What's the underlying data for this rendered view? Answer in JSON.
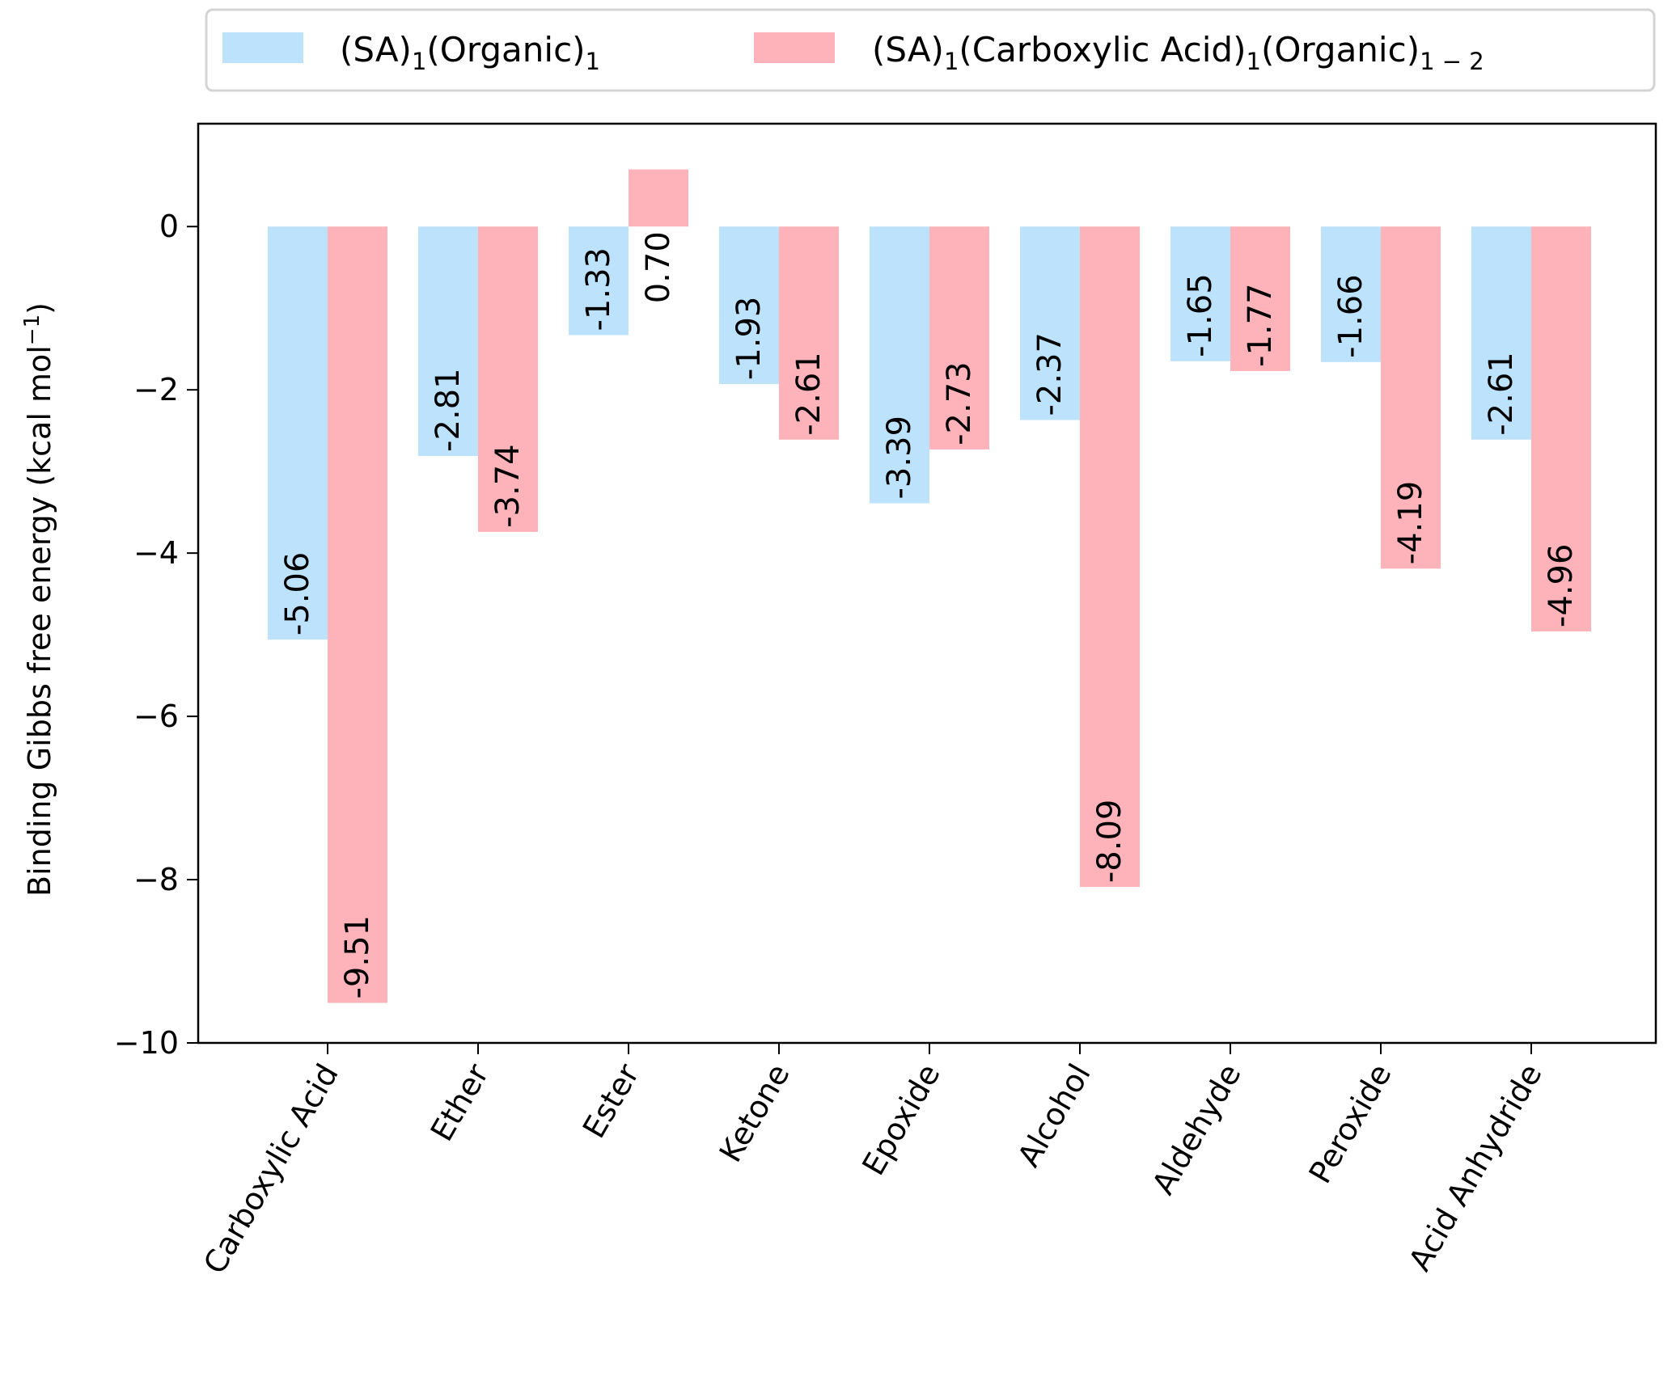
{
  "chart_data": {
    "type": "bar",
    "title": "",
    "xlabel": "",
    "ylabel": "Binding Gibbs free energy (kcal mol⁻¹)",
    "ylabel_main": "Binding Gibbs free energy (kcal mol",
    "ylabel_sup": "−1",
    "ylabel_close": ")",
    "ylim": [
      -10,
      1.26
    ],
    "yticks": [
      0,
      -2,
      -4,
      -6,
      -8,
      -10
    ],
    "ytick_labels": [
      "0",
      "−2",
      "−4",
      "−6",
      "−8",
      "−10"
    ],
    "grid": false,
    "legend_position": "top-outside",
    "categories": [
      "Carboxylic Acid",
      "Ether",
      "Ester",
      "Ketone",
      "Epoxide",
      "Alcohol",
      "Aldehyde",
      "Peroxide",
      "Acid Anhydride"
    ],
    "series": [
      {
        "name": "(SA)1(Organic)1",
        "legend_parts": [
          "(SA)",
          "1",
          "(Organic)",
          "1"
        ],
        "color": "#bde2fc",
        "values": [
          -5.06,
          -2.81,
          -1.33,
          -1.93,
          -3.39,
          -2.37,
          -1.65,
          -1.66,
          -2.61
        ],
        "labels": [
          "-5.06",
          "-2.81",
          "-1.33",
          "-1.93",
          "-3.39",
          "-2.37",
          "-1.65",
          "-1.66",
          "-2.61"
        ]
      },
      {
        "name": "(SA)1(Carboxylic Acid)1(Organic)1-2",
        "legend_parts": [
          "(SA)",
          "1",
          "(Carboxylic Acid)",
          "1",
          "(Organic)",
          "1 − 2"
        ],
        "color": "#feb3bb",
        "values": [
          -9.51,
          -3.74,
          0.7,
          -2.61,
          -2.73,
          -8.09,
          -1.77,
          -4.19,
          -4.96
        ],
        "labels": [
          "-9.51",
          "-3.74",
          "0.70",
          "-2.61",
          "-2.73",
          "-8.09",
          "-1.77",
          "-4.19",
          "-4.96"
        ]
      }
    ]
  }
}
